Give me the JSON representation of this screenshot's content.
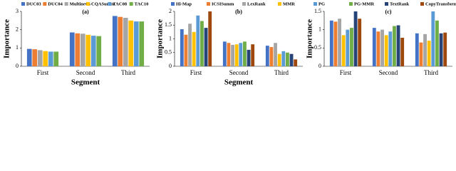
{
  "chart_data": [
    {
      "type": "bar",
      "label": "(a)",
      "ylabel": "Importance",
      "xlabel": "Segment",
      "categories": [
        "First",
        "Second",
        "Third"
      ],
      "series": [
        {
          "name": "DUC03",
          "color": "#4472c4",
          "values": [
            0.95,
            1.85,
            2.75
          ]
        },
        {
          "name": "DUC04",
          "color": "#ed7d31",
          "values": [
            0.93,
            1.8,
            2.7
          ]
        },
        {
          "name": "Multinews",
          "color": "#a5a5a5",
          "values": [
            0.88,
            1.78,
            2.65
          ]
        },
        {
          "name": "CQASumm",
          "color": "#ffc000",
          "values": [
            0.83,
            1.72,
            2.5
          ]
        },
        {
          "name": "TAC08",
          "color": "#5b9bd5",
          "values": [
            0.8,
            1.67,
            2.45
          ]
        },
        {
          "name": "TAC10",
          "color": "#70ad47",
          "values": [
            0.8,
            1.65,
            2.45
          ]
        }
      ],
      "ylim": [
        0,
        3
      ],
      "yticks": [
        0,
        1,
        2,
        3
      ]
    },
    {
      "type": "bar",
      "label": "(b)",
      "ylabel": "Importance",
      "xlabel": "Segment",
      "categories": [
        "First",
        "Second",
        "Third"
      ],
      "series": [
        {
          "name": "Hi-Map",
          "color": "#4472c4",
          "values": [
            1.35,
            0.9,
            0.75
          ]
        },
        {
          "name": "ICSISumm",
          "color": "#ed7d31",
          "values": [
            1.15,
            0.85,
            0.7
          ]
        },
        {
          "name": "LexRank",
          "color": "#a5a5a5",
          "values": [
            1.55,
            0.78,
            0.85
          ]
        },
        {
          "name": "MMR",
          "color": "#ffc000",
          "values": [
            1.25,
            0.8,
            0.45
          ]
        },
        {
          "name": "PG",
          "color": "#5b9bd5",
          "values": [
            1.85,
            0.85,
            0.55
          ]
        },
        {
          "name": "PG-MMR",
          "color": "#70ad47",
          "values": [
            1.65,
            0.9,
            0.5
          ]
        },
        {
          "name": "TextRank",
          "color": "#264478",
          "values": [
            1.4,
            0.6,
            0.45
          ]
        },
        {
          "name": "CopyTransformer",
          "color": "#9e480e",
          "values": [
            2.0,
            0.8,
            0.25
          ]
        }
      ],
      "ylim": [
        0,
        2
      ],
      "yticks": [
        0,
        0.5,
        1,
        1.5,
        2
      ]
    },
    {
      "type": "bar",
      "label": "(c)",
      "ylabel": "Importance",
      "categories": [
        "First",
        "Second",
        "Third"
      ],
      "series": [
        {
          "color": "#4472c4",
          "values": [
            1.25,
            1.05,
            0.9
          ]
        },
        {
          "color": "#ed7d31",
          "values": [
            1.22,
            0.95,
            0.65
          ]
        },
        {
          "color": "#a5a5a5",
          "values": [
            1.3,
            1.0,
            0.88
          ]
        },
        {
          "color": "#ffc000",
          "values": [
            0.85,
            0.85,
            0.7
          ]
        },
        {
          "color": "#5b9bd5",
          "values": [
            1.0,
            0.95,
            1.5
          ]
        },
        {
          "color": "#70ad47",
          "values": [
            1.05,
            1.1,
            1.25
          ]
        },
        {
          "color": "#264478",
          "values": [
            1.5,
            1.12,
            0.9
          ]
        },
        {
          "color": "#9e480e",
          "values": [
            1.3,
            0.78,
            0.92
          ]
        }
      ],
      "ylim": [
        0,
        1.5
      ],
      "yticks": [
        0,
        0.5,
        1,
        1.5
      ]
    }
  ]
}
